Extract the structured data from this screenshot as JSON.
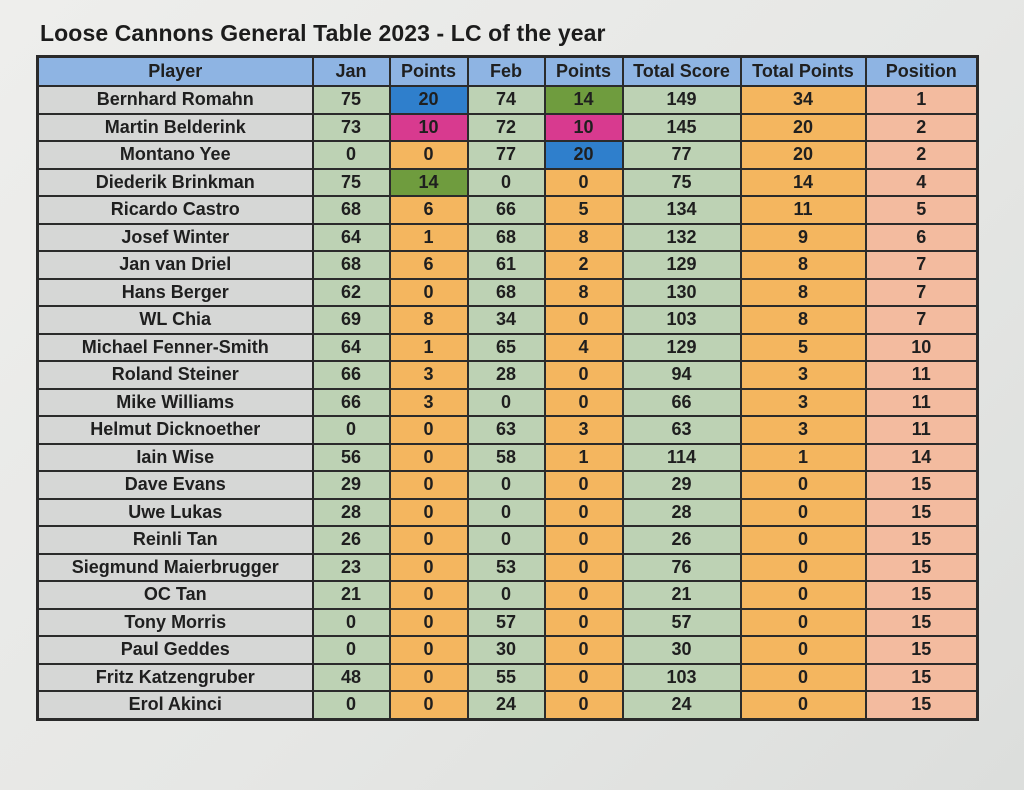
{
  "title": "Loose Cannons General Table 2023 - LC of the year",
  "headers": [
    "Player",
    "Jan",
    "Points",
    "Feb",
    "Points",
    "Total Score",
    "Total Points",
    "Position"
  ],
  "highlight_colors": {
    "blue": "#2f7fcc",
    "pink": "#d83a8f",
    "green": "#6f9c3e"
  },
  "column_colors": {
    "header": "#8eb4e3",
    "player": "#d6d7d6",
    "score": "#bdd2b4",
    "points": "#f4b65f",
    "position": "#f3bb9f"
  },
  "rows": [
    {
      "player": "Bernhard Romahn",
      "jan": "75",
      "jan_pts": "20",
      "feb": "74",
      "feb_pts": "14",
      "total_score": "149",
      "total_points": "34",
      "position": "1",
      "jan_pts_hl": "blue",
      "feb_pts_hl": "green"
    },
    {
      "player": "Martin Belderink",
      "jan": "73",
      "jan_pts": "10",
      "feb": "72",
      "feb_pts": "10",
      "total_score": "145",
      "total_points": "20",
      "position": "2",
      "jan_pts_hl": "pink",
      "feb_pts_hl": "pink"
    },
    {
      "player": "Montano Yee",
      "jan": "0",
      "jan_pts": "0",
      "feb": "77",
      "feb_pts": "20",
      "total_score": "77",
      "total_points": "20",
      "position": "2",
      "feb_pts_hl": "blue"
    },
    {
      "player": "Diederik Brinkman",
      "jan": "75",
      "jan_pts": "14",
      "feb": "0",
      "feb_pts": "0",
      "total_score": "75",
      "total_points": "14",
      "position": "4",
      "jan_pts_hl": "green"
    },
    {
      "player": "Ricardo Castro",
      "jan": "68",
      "jan_pts": "6",
      "feb": "66",
      "feb_pts": "5",
      "total_score": "134",
      "total_points": "11",
      "position": "5"
    },
    {
      "player": "Josef Winter",
      "jan": "64",
      "jan_pts": "1",
      "feb": "68",
      "feb_pts": "8",
      "total_score": "132",
      "total_points": "9",
      "position": "6"
    },
    {
      "player": "Jan van Driel",
      "jan": "68",
      "jan_pts": "6",
      "feb": "61",
      "feb_pts": "2",
      "total_score": "129",
      "total_points": "8",
      "position": "7"
    },
    {
      "player": "Hans Berger",
      "jan": "62",
      "jan_pts": "0",
      "feb": "68",
      "feb_pts": "8",
      "total_score": "130",
      "total_points": "8",
      "position": "7"
    },
    {
      "player": "WL Chia",
      "jan": "69",
      "jan_pts": "8",
      "feb": "34",
      "feb_pts": "0",
      "total_score": "103",
      "total_points": "8",
      "position": "7"
    },
    {
      "player": "Michael Fenner-Smith",
      "jan": "64",
      "jan_pts": "1",
      "feb": "65",
      "feb_pts": "4",
      "total_score": "129",
      "total_points": "5",
      "position": "10"
    },
    {
      "player": "Roland Steiner",
      "jan": "66",
      "jan_pts": "3",
      "feb": "28",
      "feb_pts": "0",
      "total_score": "94",
      "total_points": "3",
      "position": "11"
    },
    {
      "player": "Mike Williams",
      "jan": "66",
      "jan_pts": "3",
      "feb": "0",
      "feb_pts": "0",
      "total_score": "66",
      "total_points": "3",
      "position": "11"
    },
    {
      "player": "Helmut Dicknoether",
      "jan": "0",
      "jan_pts": "0",
      "feb": "63",
      "feb_pts": "3",
      "total_score": "63",
      "total_points": "3",
      "position": "11"
    },
    {
      "player": "Iain Wise",
      "jan": "56",
      "jan_pts": "0",
      "feb": "58",
      "feb_pts": "1",
      "total_score": "114",
      "total_points": "1",
      "position": "14"
    },
    {
      "player": "Dave Evans",
      "jan": "29",
      "jan_pts": "0",
      "feb": "0",
      "feb_pts": "0",
      "total_score": "29",
      "total_points": "0",
      "position": "15"
    },
    {
      "player": "Uwe Lukas",
      "jan": "28",
      "jan_pts": "0",
      "feb": "0",
      "feb_pts": "0",
      "total_score": "28",
      "total_points": "0",
      "position": "15"
    },
    {
      "player": "Reinli Tan",
      "jan": "26",
      "jan_pts": "0",
      "feb": "0",
      "feb_pts": "0",
      "total_score": "26",
      "total_points": "0",
      "position": "15"
    },
    {
      "player": "Siegmund Maierbrugger",
      "jan": "23",
      "jan_pts": "0",
      "feb": "53",
      "feb_pts": "0",
      "total_score": "76",
      "total_points": "0",
      "position": "15"
    },
    {
      "player": "OC Tan",
      "jan": "21",
      "jan_pts": "0",
      "feb": "0",
      "feb_pts": "0",
      "total_score": "21",
      "total_points": "0",
      "position": "15"
    },
    {
      "player": "Tony Morris",
      "jan": "0",
      "jan_pts": "0",
      "feb": "57",
      "feb_pts": "0",
      "total_score": "57",
      "total_points": "0",
      "position": "15"
    },
    {
      "player": "Paul Geddes",
      "jan": "0",
      "jan_pts": "0",
      "feb": "30",
      "feb_pts": "0",
      "total_score": "30",
      "total_points": "0",
      "position": "15"
    },
    {
      "player": "Fritz Katzengruber",
      "jan": "48",
      "jan_pts": "0",
      "feb": "55",
      "feb_pts": "0",
      "total_score": "103",
      "total_points": "0",
      "position": "15"
    },
    {
      "player": "Erol Akinci",
      "jan": "0",
      "jan_pts": "0",
      "feb": "24",
      "feb_pts": "0",
      "total_score": "24",
      "total_points": "0",
      "position": "15"
    }
  ]
}
